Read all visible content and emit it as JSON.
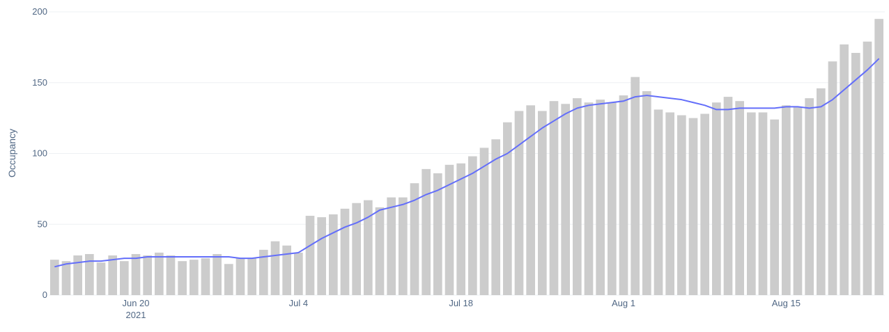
{
  "chart_data": {
    "type": "bar",
    "y_label": "Occupancy",
    "x": [
      "2021-06-13",
      "2021-06-14",
      "2021-06-15",
      "2021-06-16",
      "2021-06-17",
      "2021-06-18",
      "2021-06-19",
      "2021-06-20",
      "2021-06-21",
      "2021-06-22",
      "2021-06-23",
      "2021-06-24",
      "2021-06-25",
      "2021-06-26",
      "2021-06-27",
      "2021-06-28",
      "2021-06-29",
      "2021-06-30",
      "2021-07-01",
      "2021-07-02",
      "2021-07-03",
      "2021-07-04",
      "2021-07-05",
      "2021-07-06",
      "2021-07-07",
      "2021-07-08",
      "2021-07-09",
      "2021-07-10",
      "2021-07-11",
      "2021-07-12",
      "2021-07-13",
      "2021-07-14",
      "2021-07-15",
      "2021-07-16",
      "2021-07-17",
      "2021-07-18",
      "2021-07-19",
      "2021-07-20",
      "2021-07-21",
      "2021-07-22",
      "2021-07-23",
      "2021-07-24",
      "2021-07-25",
      "2021-07-26",
      "2021-07-27",
      "2021-07-28",
      "2021-07-29",
      "2021-07-30",
      "2021-07-31",
      "2021-08-01",
      "2021-08-02",
      "2021-08-03",
      "2021-08-04",
      "2021-08-05",
      "2021-08-06",
      "2021-08-07",
      "2021-08-08",
      "2021-08-09",
      "2021-08-10",
      "2021-08-11",
      "2021-08-12",
      "2021-08-13",
      "2021-08-14",
      "2021-08-15",
      "2021-08-16",
      "2021-08-17",
      "2021-08-18",
      "2021-08-19",
      "2021-08-20",
      "2021-08-21",
      "2021-08-22",
      "2021-08-23"
    ],
    "series": [
      {
        "type": "bar",
        "color": "#cccccc",
        "values": [
          25,
          24,
          28,
          29,
          23,
          28,
          24,
          29,
          28,
          30,
          28,
          24,
          25,
          26,
          29,
          22,
          26,
          26,
          32,
          38,
          35,
          30,
          56,
          55,
          57,
          61,
          65,
          67,
          62,
          69,
          69,
          79,
          89,
          86,
          92,
          93,
          98,
          104,
          110,
          122,
          130,
          134,
          130,
          137,
          135,
          139,
          136,
          138,
          136,
          141,
          154,
          144,
          131,
          129,
          127,
          125,
          128,
          136,
          140,
          137,
          129,
          129,
          124,
          134,
          133,
          139,
          146,
          165,
          177,
          171,
          179,
          195
        ]
      },
      {
        "type": "line",
        "color": "#636efa",
        "values": [
          20,
          22,
          23,
          24,
          24,
          25,
          26,
          26,
          27,
          27,
          27,
          27,
          27,
          27,
          27,
          27,
          26,
          26,
          27,
          28,
          29,
          30,
          35,
          40,
          44,
          48,
          51,
          55,
          60,
          62,
          64,
          67,
          71,
          74,
          78,
          82,
          86,
          91,
          96,
          100,
          106,
          112,
          118,
          123,
          128,
          132,
          134,
          135,
          136,
          137,
          140,
          141,
          140,
          139,
          138,
          136,
          134,
          131,
          131,
          132,
          132,
          132,
          132,
          133,
          133,
          132,
          133,
          138,
          145,
          152,
          159,
          167
        ]
      }
    ],
    "xticks": [
      {
        "value": "2021-06-20",
        "label": "Jun 20\n2021"
      },
      {
        "value": "2021-07-04",
        "label": "Jul 4"
      },
      {
        "value": "2021-07-18",
        "label": "Jul 18"
      },
      {
        "value": "2021-08-01",
        "label": "Aug 1"
      },
      {
        "value": "2021-08-15",
        "label": "Aug 15"
      }
    ],
    "ylim": [
      0,
      200
    ],
    "yticks": [
      0,
      50,
      100,
      150,
      200
    ],
    "grid": true
  }
}
